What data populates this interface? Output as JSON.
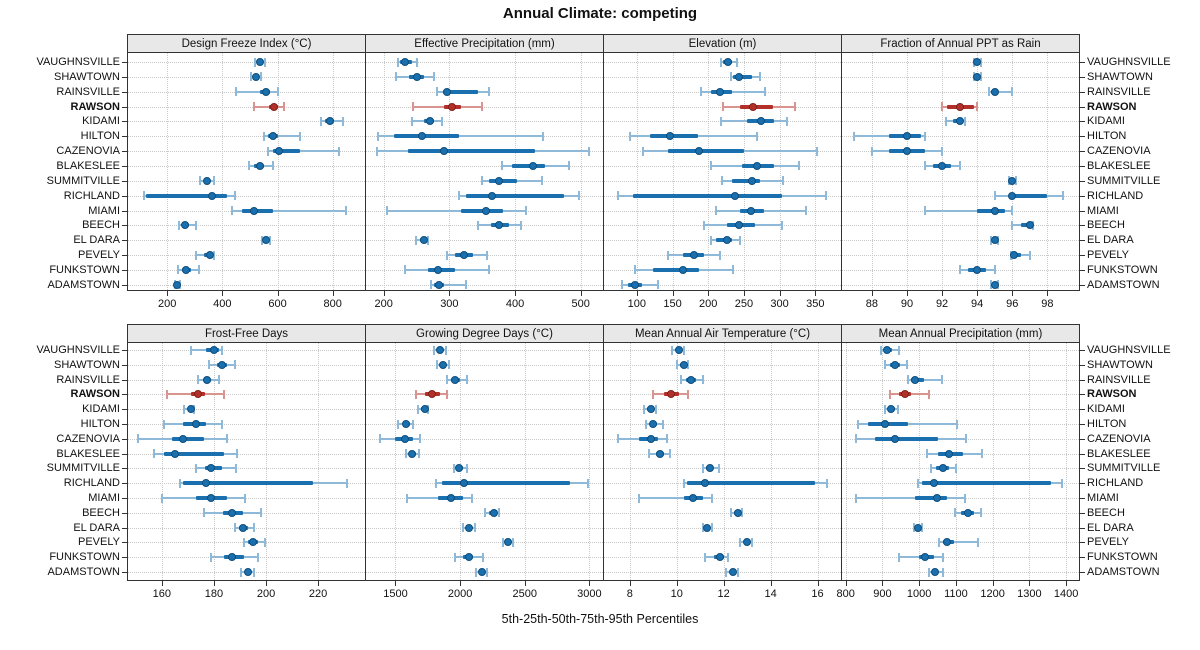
{
  "colors": {
    "series": "#1a6fae",
    "series_light": "#8fb9d9",
    "series_dark": "#0f4d7a",
    "highlight": "#b3302a",
    "highlight_light": "#d9948f",
    "highlight_dark": "#7e221d",
    "strip_bg": "#e8e8e8",
    "grid": "#c9c9c9",
    "frame": "#333333"
  },
  "chart_data": {
    "type": "dotplot-percentiles",
    "title": "Annual Climate: competing",
    "xlabel": "5th-25th-50th-75th-95th Percentiles",
    "percentile_labels": [
      "5th",
      "25th",
      "50th",
      "75th",
      "95th"
    ],
    "legend": "none",
    "grid": "dotted",
    "layout": {
      "rows": 2,
      "cols": 4
    },
    "highlight": "RAWSON",
    "locations": [
      "VAUGHNSVILLE",
      "SHAWTOWN",
      "RAINSVILLE",
      "RAWSON",
      "KIDAMI",
      "HILTON",
      "CAZENOVIA",
      "BLAKESLEE",
      "SUMMITVILLE",
      "RICHLAND",
      "MIAMI",
      "BEECH",
      "EL DARA",
      "PEVELY",
      "FUNKSTOWN",
      "ADAMSTOWN"
    ],
    "panels": [
      {
        "title": "Design Freeze Index (°C)",
        "ticks": [
          200,
          400,
          600,
          800
        ],
        "xlim": [
          58,
          917
        ],
        "values": [
          [
            520,
            527,
            537,
            547,
            556
          ],
          [
            505,
            512,
            522,
            530,
            541
          ],
          [
            450,
            538,
            559,
            571,
            600
          ],
          [
            514,
            570,
            588,
            603,
            625
          ],
          [
            758,
            773,
            790,
            805,
            836
          ],
          [
            550,
            567,
            583,
            603,
            681
          ],
          [
            565,
            583,
            604,
            683,
            821
          ],
          [
            496,
            514,
            535,
            550,
            583
          ],
          [
            320,
            332,
            344,
            356,
            368
          ],
          [
            116,
            125,
            361,
            417,
            447
          ],
          [
            435,
            470,
            515,
            585,
            848
          ],
          [
            242,
            252,
            263,
            278,
            304
          ],
          [
            544,
            550,
            559,
            567,
            573
          ],
          [
            306,
            335,
            355,
            362,
            368
          ],
          [
            240,
            255,
            268,
            285,
            315
          ],
          [
            228,
            232,
            236,
            241,
            248
          ]
        ]
      },
      {
        "title": "Effective Precipitation (mm)",
        "ticks": [
          200,
          300,
          400,
          500
        ],
        "xlim": [
          173,
          534
        ],
        "values": [
          [
            221,
            225,
            233,
            243,
            251
          ],
          [
            218,
            239,
            251,
            262,
            277
          ],
          [
            281,
            290,
            297,
            343,
            361
          ],
          [
            245,
            292,
            304,
            318,
            350
          ],
          [
            243,
            262,
            271,
            277,
            289
          ],
          [
            192,
            216,
            258,
            314,
            443
          ],
          [
            190,
            237,
            292,
            431,
            512
          ],
          [
            380,
            395,
            428,
            446,
            482
          ],
          [
            350,
            360,
            376,
            403,
            441
          ],
          [
            314,
            325,
            365,
            474,
            497
          ],
          [
            205,
            318,
            356,
            381,
            416
          ],
          [
            343,
            363,
            376,
            391,
            409
          ],
          [
            249,
            255,
            261,
            264,
            267
          ],
          [
            297,
            309,
            322,
            336,
            357
          ],
          [
            233,
            267,
            282,
            308,
            360
          ],
          [
            272,
            277,
            284,
            292,
            325
          ]
        ]
      },
      {
        "title": "Elevation (m)",
        "ticks": [
          100,
          150,
          200,
          250,
          300,
          350
        ],
        "xlim": [
          54,
          386
        ],
        "values": [
          [
            218,
            221,
            228,
            234,
            240
          ],
          [
            232,
            235,
            243,
            262,
            272
          ],
          [
            190,
            204,
            217,
            234,
            279
          ],
          [
            221,
            245,
            263,
            291,
            321
          ],
          [
            218,
            255,
            274,
            292,
            310
          ],
          [
            90,
            119,
            147,
            186,
            268
          ],
          [
            108,
            143,
            187,
            250,
            352
          ],
          [
            204,
            248,
            268,
            292,
            327
          ],
          [
            219,
            234,
            262,
            273,
            305
          ],
          [
            74,
            94,
            238,
            304,
            365
          ],
          [
            211,
            244,
            260,
            278,
            337
          ],
          [
            194,
            226,
            243,
            266,
            304
          ],
          [
            204,
            211,
            226,
            234,
            244
          ],
          [
            143,
            164,
            180,
            194,
            217
          ],
          [
            97,
            122,
            164,
            187,
            235
          ],
          [
            79,
            87,
            98,
            107,
            129
          ]
        ]
      },
      {
        "title": "Fraction of Annual PPT as Rain",
        "ticks": [
          88,
          90,
          92,
          94,
          96,
          98
        ],
        "xlim": [
          86.3,
          99.8
        ],
        "values": [
          [
            93.8,
            93.9,
            94,
            94.1,
            94.2
          ],
          [
            93.8,
            93.9,
            94,
            94.1,
            94.2
          ],
          [
            94.7,
            94.8,
            95,
            95.2,
            96
          ],
          [
            92,
            92.3,
            93,
            93.8,
            94
          ],
          [
            92.2,
            92.6,
            93,
            93.2,
            93.3
          ],
          [
            87,
            89,
            90,
            90.8,
            91
          ],
          [
            88,
            89,
            90,
            91,
            92
          ],
          [
            91,
            91.5,
            92,
            92.5,
            93
          ],
          [
            95.8,
            95.9,
            96,
            96.1,
            96.2
          ],
          [
            95,
            95.8,
            96,
            98,
            98.9
          ],
          [
            91,
            94,
            95,
            95.6,
            96
          ],
          [
            96,
            96.5,
            97,
            97.1,
            97.2
          ],
          [
            94.8,
            94.9,
            95,
            95.1,
            95.2
          ],
          [
            95.9,
            96,
            96.1,
            96.5,
            97
          ],
          [
            93,
            93.5,
            94,
            94.5,
            95
          ],
          [
            94.8,
            94.9,
            95,
            95.1,
            95.2
          ]
        ]
      },
      {
        "title": "Frost-Free Days",
        "ticks": [
          160,
          180,
          200,
          220
        ],
        "xlim": [
          147,
          238
        ],
        "values": [
          [
            171,
            177,
            180,
            182,
            183
          ],
          [
            178,
            181,
            183,
            185,
            188
          ],
          [
            174,
            176,
            177.5,
            179,
            182
          ],
          [
            162,
            171,
            174,
            176.5,
            184
          ],
          [
            168.5,
            170,
            171,
            171.5,
            172.5
          ],
          [
            161,
            168,
            173,
            177,
            183
          ],
          [
            151,
            164,
            168,
            176,
            185
          ],
          [
            157,
            161,
            165,
            184,
            189
          ],
          [
            173,
            176.5,
            179,
            183,
            188.5
          ],
          [
            167,
            168,
            177,
            218,
            231
          ],
          [
            160,
            173,
            179,
            185,
            192
          ],
          [
            176,
            183.5,
            187,
            191,
            198
          ],
          [
            188,
            189.5,
            191,
            193,
            195.5
          ],
          [
            191.5,
            193,
            195,
            197,
            199.5
          ],
          [
            179,
            184,
            187,
            191.5,
            197
          ],
          [
            190.5,
            192,
            193,
            194,
            195.5
          ]
        ]
      },
      {
        "title": "Growing Degree Days (°C)",
        "ticks": [
          1500,
          2000,
          2500,
          3000
        ],
        "xlim": [
          1272,
          3105
        ],
        "values": [
          [
            1800,
            1825,
            1846,
            1865,
            1890
          ],
          [
            1820,
            1845,
            1867,
            1890,
            1913
          ],
          [
            1897,
            1930,
            1964,
            2000,
            2051
          ],
          [
            1662,
            1726,
            1785,
            1841,
            1897
          ],
          [
            1674,
            1700,
            1726,
            1740,
            1751
          ],
          [
            1521,
            1555,
            1580,
            1610,
            1636
          ],
          [
            1379,
            1495,
            1572,
            1636,
            1692
          ],
          [
            1579,
            1605,
            1631,
            1655,
            1682
          ],
          [
            1949,
            1970,
            1990,
            2020,
            2051
          ],
          [
            1810,
            1860,
            2028,
            2850,
            2990
          ],
          [
            1590,
            1828,
            1930,
            2020,
            2092
          ],
          [
            2195,
            2226,
            2264,
            2277,
            2297
          ],
          [
            2021,
            2045,
            2067,
            2090,
            2118
          ],
          [
            2333,
            2355,
            2374,
            2395,
            2410
          ],
          [
            1964,
            2021,
            2067,
            2097,
            2179
          ],
          [
            2123,
            2145,
            2169,
            2190,
            2205
          ]
        ]
      },
      {
        "title": "Mean Annual Air Temperature (°C)",
        "ticks": [
          8,
          10,
          12,
          14,
          16
        ],
        "xlim": [
          6.9,
          17.0
        ],
        "values": [
          [
            9.8,
            9.95,
            10.1,
            10.2,
            10.3
          ],
          [
            10,
            10.15,
            10.3,
            10.4,
            10.5
          ],
          [
            10.2,
            10.4,
            10.6,
            10.8,
            11.1
          ],
          [
            9,
            9.45,
            9.75,
            10.1,
            10.5
          ],
          [
            8.6,
            8.75,
            8.9,
            9,
            9.1
          ],
          [
            8.7,
            8.9,
            9,
            9.15,
            9.4
          ],
          [
            7.5,
            8.4,
            8.9,
            9.2,
            9.6
          ],
          [
            8.8,
            9.1,
            9.3,
            9.45,
            9.7
          ],
          [
            11.1,
            11.25,
            11.4,
            11.55,
            11.8
          ],
          [
            10.3,
            10.45,
            11.2,
            15.9,
            16.4
          ],
          [
            8.4,
            10.3,
            10.7,
            11.1,
            11.5
          ],
          [
            12.3,
            12.45,
            12.6,
            12.7,
            12.8
          ],
          [
            11.1,
            11.2,
            11.3,
            11.4,
            11.5
          ],
          [
            12.7,
            12.85,
            13,
            13.1,
            13.2
          ],
          [
            11.2,
            11.6,
            11.85,
            12,
            12.2
          ],
          [
            12.1,
            12.25,
            12.4,
            12.5,
            12.6
          ]
        ]
      },
      {
        "title": "Mean Annual Precipitation (mm)",
        "ticks": [
          800,
          900,
          1000,
          1100,
          1200,
          1300,
          1400
        ],
        "xlim": [
          790,
          1435
        ],
        "values": [
          [
            895,
            905,
            913,
            925,
            945
          ],
          [
            906,
            920,
            933,
            948,
            968
          ],
          [
            969,
            978,
            990,
            1014,
            1062
          ],
          [
            920,
            945,
            962,
            978,
            1026
          ],
          [
            906,
            915,
            924,
            933,
            942
          ],
          [
            834,
            861,
            906,
            969,
            1102
          ],
          [
            828,
            879,
            933,
            1050,
            1127
          ],
          [
            1021,
            1050,
            1082,
            1118,
            1170
          ],
          [
            1032,
            1046,
            1064,
            1080,
            1100
          ],
          [
            996,
            1008,
            1041,
            1359,
            1390
          ],
          [
            828,
            990,
            1048,
            1075,
            1125
          ],
          [
            1098,
            1115,
            1132,
            1148,
            1168
          ],
          [
            985,
            990,
            996,
            1002,
            1008
          ],
          [
            1053,
            1064,
            1076,
            1095,
            1159
          ],
          [
            945,
            999,
            1017,
            1041,
            1064
          ],
          [
            1026,
            1034,
            1043,
            1052,
            1064
          ]
        ]
      }
    ]
  }
}
